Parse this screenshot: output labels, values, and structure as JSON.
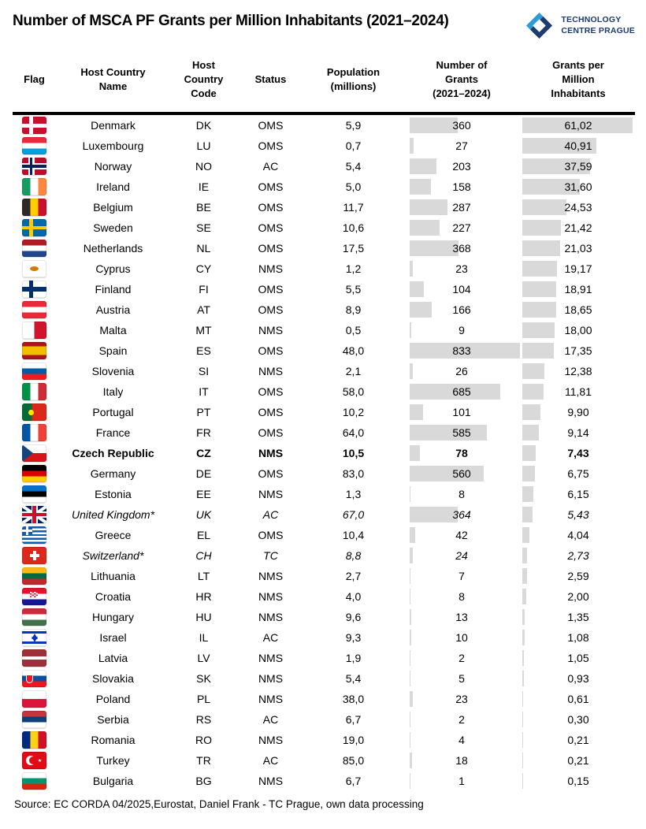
{
  "title": "Number of MSCA PF Grants per Million Inhabitants (2021–2024)",
  "logo": {
    "line1": "TECHNOLOGY",
    "line2": "CENTRE PRAGUE",
    "light_blue": "#2e9bd6",
    "dark_blue": "#1d3b6d"
  },
  "source": "Source: EC CORDA 04/2025,Eurostat, Daniel Frank - TC Prague, own data processing",
  "table": {
    "headers": {
      "flag": "Flag",
      "name": "Host Country\nName",
      "code": "Host\nCountry\nCode",
      "status": "Status",
      "population": "Population\n(millions)",
      "grants": "Number of\nGrants\n(2021–2024)",
      "gpm": "Grants per\nMillion\nInhabitants"
    },
    "bar_color": "#d9d9d9",
    "grants_axis_max": 833,
    "gpm_axis_max": 61.02,
    "rows": [
      {
        "name": "Denmark",
        "code": "DK",
        "status": "OMS",
        "population": "5,9",
        "grants": 360,
        "gpm": 61.02,
        "gpm_display": "61,02",
        "style": "normal",
        "flag": {
          "bg": "#c8102e",
          "o": [
            {
              "t": "nordic",
              "c": "#ffffff",
              "w": 5
            }
          ]
        }
      },
      {
        "name": "Luxembourg",
        "code": "LU",
        "status": "OMS",
        "population": "0,7",
        "grants": 27,
        "gpm": 40.91,
        "gpm_display": "40,91",
        "style": "normal",
        "flag": {
          "s": {
            "d": "h",
            "c": [
              "#ed2939",
              "#ffffff",
              "#00a1de"
            ]
          }
        }
      },
      {
        "name": "Norway",
        "code": "NO",
        "status": "AC",
        "population": "5,4",
        "grants": 203,
        "gpm": 37.59,
        "gpm_display": "37,59",
        "style": "normal",
        "flag": {
          "bg": "#ba0c2f",
          "o": [
            {
              "t": "nordic",
              "c": "#ffffff",
              "w": 8
            },
            {
              "t": "nordic",
              "c": "#00205b",
              "w": 3.5
            }
          ]
        }
      },
      {
        "name": "Ireland",
        "code": "IE",
        "status": "OMS",
        "population": "5,0",
        "grants": 158,
        "gpm": 31.6,
        "gpm_display": "31,60",
        "style": "normal",
        "flag": {
          "s": {
            "d": "v",
            "c": [
              "#169b62",
              "#ffffff",
              "#ff883e"
            ]
          }
        }
      },
      {
        "name": "Belgium",
        "code": "BE",
        "status": "OMS",
        "population": "11,7",
        "grants": 287,
        "gpm": 24.53,
        "gpm_display": "24,53",
        "style": "normal",
        "flag": {
          "s": {
            "d": "v",
            "c": [
              "#2d2926",
              "#ffcd00",
              "#c8102e"
            ]
          }
        }
      },
      {
        "name": "Sweden",
        "code": "SE",
        "status": "OMS",
        "population": "10,6",
        "grants": 227,
        "gpm": 21.42,
        "gpm_display": "21,42",
        "style": "normal",
        "flag": {
          "bg": "#006aa7",
          "o": [
            {
              "t": "nordic",
              "c": "#fecc00",
              "w": 4.5
            }
          ]
        }
      },
      {
        "name": "Netherlands",
        "code": "NL",
        "status": "OMS",
        "population": "17,5",
        "grants": 368,
        "gpm": 21.03,
        "gpm_display": "21,03",
        "style": "normal",
        "flag": {
          "s": {
            "d": "h",
            "c": [
              "#ae1c28",
              "#ffffff",
              "#21468b"
            ]
          }
        }
      },
      {
        "name": "Cyprus",
        "code": "CY",
        "status": "NMS",
        "population": "1,2",
        "grants": 23,
        "gpm": 19.17,
        "gpm_display": "19,17",
        "style": "normal",
        "flag": {
          "bg": "#ffffff",
          "o": [
            {
              "t": "dot",
              "c": "#d57800",
              "x": 10,
              "w": 11,
              "h": 6
            }
          ]
        }
      },
      {
        "name": "Finland",
        "code": "FI",
        "status": "OMS",
        "population": "5,5",
        "grants": 104,
        "gpm": 18.91,
        "gpm_display": "18,91",
        "style": "normal",
        "flag": {
          "bg": "#ffffff",
          "o": [
            {
              "t": "nordic",
              "c": "#002f6c",
              "w": 5.5
            }
          ]
        }
      },
      {
        "name": "Austria",
        "code": "AT",
        "status": "OMS",
        "population": "8,9",
        "grants": 166,
        "gpm": 18.65,
        "gpm_display": "18,65",
        "style": "normal",
        "flag": {
          "s": {
            "d": "h",
            "c": [
              "#ed2939",
              "#ffffff",
              "#ed2939"
            ]
          }
        }
      },
      {
        "name": "Malta",
        "code": "MT",
        "status": "NMS",
        "population": "0,5",
        "grants": 9,
        "gpm": 18.0,
        "gpm_display": "18,00",
        "style": "normal",
        "flag": {
          "s": {
            "d": "v",
            "c": [
              "#ffffff",
              "#cf142b"
            ]
          }
        }
      },
      {
        "name": "Spain",
        "code": "ES",
        "status": "OMS",
        "population": "48,0",
        "grants": 833,
        "gpm": 17.35,
        "gpm_display": "17,35",
        "style": "normal",
        "flag": {
          "s": {
            "d": "h",
            "c": [
              "#aa151b",
              "#f1bf00",
              "#aa151b"
            ],
            "w": [
              1,
              2,
              1
            ]
          }
        }
      },
      {
        "name": "Slovenia",
        "code": "SI",
        "status": "NMS",
        "population": "2,1",
        "grants": 26,
        "gpm": 12.38,
        "gpm_display": "12,38",
        "style": "normal",
        "flag": {
          "s": {
            "d": "h",
            "c": [
              "#ffffff",
              "#005da4",
              "#ed1c24"
            ]
          }
        }
      },
      {
        "name": "Italy",
        "code": "IT",
        "status": "OMS",
        "population": "58,0",
        "grants": 685,
        "gpm": 11.81,
        "gpm_display": "11,81",
        "style": "normal",
        "flag": {
          "s": {
            "d": "v",
            "c": [
              "#009246",
              "#ffffff",
              "#ce2b37"
            ]
          }
        }
      },
      {
        "name": "Portugal",
        "code": "PT",
        "status": "OMS",
        "population": "10,2",
        "grants": 101,
        "gpm": 9.9,
        "gpm_display": "9,90",
        "style": "normal",
        "flag": {
          "s": {
            "d": "v",
            "c": [
              "#046a38",
              "#da291c"
            ],
            "w": [
              2,
              3
            ]
          },
          "o": [
            {
              "t": "dot",
              "c": "#ffe900",
              "x": 8,
              "w": 7,
              "h": 7
            }
          ]
        }
      },
      {
        "name": "France",
        "code": "FR",
        "status": "OMS",
        "population": "64,0",
        "grants": 585,
        "gpm": 9.14,
        "gpm_display": "9,14",
        "style": "normal",
        "flag": {
          "s": {
            "d": "v",
            "c": [
              "#0055a4",
              "#ffffff",
              "#ef4135"
            ]
          }
        }
      },
      {
        "name": "Czech Republic",
        "code": "CZ",
        "status": "NMS",
        "population": "10,5",
        "grants": 78,
        "gpm": 7.43,
        "gpm_display": "7,43",
        "style": "bold",
        "flag": {
          "s": {
            "d": "h",
            "c": [
              "#ffffff",
              "#d7141a"
            ]
          },
          "o": [
            {
              "t": "tri",
              "c": "#11457e"
            }
          ]
        }
      },
      {
        "name": "Germany",
        "code": "DE",
        "status": "OMS",
        "population": "83,0",
        "grants": 560,
        "gpm": 6.75,
        "gpm_display": "6,75",
        "style": "normal",
        "flag": {
          "s": {
            "d": "h",
            "c": [
              "#000000",
              "#dd0000",
              "#ffce00"
            ]
          }
        }
      },
      {
        "name": "Estonia",
        "code": "EE",
        "status": "NMS",
        "population": "1,3",
        "grants": 8,
        "gpm": 6.15,
        "gpm_display": "6,15",
        "style": "normal",
        "flag": {
          "s": {
            "d": "h",
            "c": [
              "#0072ce",
              "#000000",
              "#ffffff"
            ]
          }
        }
      },
      {
        "name": "United Kingdom*",
        "code": "UK",
        "status": "AC",
        "population": "67,0",
        "grants": 364,
        "gpm": 5.43,
        "gpm_display": "5,43",
        "style": "italic",
        "flag": {
          "bg": "#012169",
          "o": [
            {
              "t": "saltire"
            },
            {
              "t": "ujcross"
            }
          ]
        }
      },
      {
        "name": "Greece",
        "code": "EL",
        "status": "OMS",
        "population": "10,4",
        "grants": 42,
        "gpm": 4.04,
        "gpm_display": "4,04",
        "style": "normal",
        "flag": {
          "s": {
            "d": "h",
            "c": [
              "#0d5eaf",
              "#ffffff",
              "#0d5eaf",
              "#ffffff",
              "#0d5eaf",
              "#ffffff",
              "#0d5eaf",
              "#ffffff",
              "#0d5eaf"
            ]
          },
          "o": [
            {
              "t": "canton",
              "c": "#0d5eaf"
            }
          ]
        }
      },
      {
        "name": "Switzerland*",
        "code": "CH",
        "status": "TC",
        "population": "8,8",
        "grants": 24,
        "gpm": 2.73,
        "gpm_display": "2,73",
        "style": "italic",
        "flag": {
          "bg": "#da291c",
          "o": [
            {
              "t": "plus",
              "c": "#ffffff"
            }
          ]
        }
      },
      {
        "name": "Lithuania",
        "code": "LT",
        "status": "NMS",
        "population": "2,7",
        "grants": 7,
        "gpm": 2.59,
        "gpm_display": "2,59",
        "style": "normal",
        "flag": {
          "s": {
            "d": "h",
            "c": [
              "#fdb913",
              "#006a44",
              "#c1272d"
            ]
          }
        }
      },
      {
        "name": "Croatia",
        "code": "HR",
        "status": "NMS",
        "population": "4,0",
        "grants": 8,
        "gpm": 2.0,
        "gpm_display": "2,00",
        "style": "normal",
        "flag": {
          "s": {
            "d": "h",
            "c": [
              "#e8112d",
              "#ffffff",
              "#171796"
            ]
          },
          "o": [
            {
              "t": "check"
            }
          ]
        }
      },
      {
        "name": "Hungary",
        "code": "HU",
        "status": "NMS",
        "population": "9,6",
        "grants": 13,
        "gpm": 1.35,
        "gpm_display": "1,35",
        "style": "normal",
        "flag": {
          "s": {
            "d": "h",
            "c": [
              "#cd2a3e",
              "#ffffff",
              "#436f4d"
            ]
          }
        }
      },
      {
        "name": "Israel",
        "code": "IL",
        "status": "AC",
        "population": "9,3",
        "grants": 10,
        "gpm": 1.08,
        "gpm_display": "1,08",
        "style": "normal",
        "flag": {
          "bg": "#ffffff",
          "o": [
            {
              "t": "bands",
              "c": "#0038b8"
            },
            {
              "t": "star6",
              "c": "#0038b8"
            }
          ]
        }
      },
      {
        "name": "Latvia",
        "code": "LV",
        "status": "NMS",
        "population": "1,9",
        "grants": 2,
        "gpm": 1.05,
        "gpm_display": "1,05",
        "style": "normal",
        "flag": {
          "s": {
            "d": "h",
            "c": [
              "#9e3039",
              "#ffffff",
              "#9e3039"
            ],
            "w": [
              2,
              1,
              2
            ]
          }
        }
      },
      {
        "name": "Slovakia",
        "code": "SK",
        "status": "NMS",
        "population": "5,4",
        "grants": 5,
        "gpm": 0.93,
        "gpm_display": "0,93",
        "style": "normal",
        "flag": {
          "s": {
            "d": "h",
            "c": [
              "#ffffff",
              "#0b4ea2",
              "#ee1620"
            ]
          },
          "o": [
            {
              "t": "shield"
            }
          ]
        }
      },
      {
        "name": "Poland",
        "code": "PL",
        "status": "NMS",
        "population": "38,0",
        "grants": 23,
        "gpm": 0.61,
        "gpm_display": "0,61",
        "style": "normal",
        "flag": {
          "s": {
            "d": "h",
            "c": [
              "#ffffff",
              "#dc143c"
            ]
          }
        }
      },
      {
        "name": "Serbia",
        "code": "RS",
        "status": "AC",
        "population": "6,7",
        "grants": 2,
        "gpm": 0.3,
        "gpm_display": "0,30",
        "style": "normal",
        "flag": {
          "s": {
            "d": "h",
            "c": [
              "#c6363c",
              "#0c4076",
              "#ffffff"
            ]
          }
        }
      },
      {
        "name": "Romania",
        "code": "RO",
        "status": "NMS",
        "population": "19,0",
        "grants": 4,
        "gpm": 0.21,
        "gpm_display": "0,21",
        "style": "normal",
        "flag": {
          "s": {
            "d": "v",
            "c": [
              "#002b7f",
              "#fcd116",
              "#ce1126"
            ]
          }
        }
      },
      {
        "name": "Turkey",
        "code": "TR",
        "status": "AC",
        "population": "85,0",
        "grants": 18,
        "gpm": 0.21,
        "gpm_display": "0,21",
        "style": "normal",
        "flag": {
          "bg": "#e30a17",
          "o": [
            {
              "t": "crescent"
            }
          ]
        }
      },
      {
        "name": "Bulgaria",
        "code": "BG",
        "status": "NMS",
        "population": "6,7",
        "grants": 1,
        "gpm": 0.15,
        "gpm_display": "0,15",
        "style": "normal",
        "flag": {
          "s": {
            "d": "h",
            "c": [
              "#ffffff",
              "#00966e",
              "#d62612"
            ]
          }
        }
      }
    ]
  },
  "chart_data": {
    "type": "table",
    "title": "Number of MSCA PF Grants per Million Inhabitants (2021–2024)",
    "columns": [
      "Flag",
      "Host Country Name",
      "Host Country Code",
      "Status",
      "Population (millions)",
      "Number of Grants (2021–2024)",
      "Grants per Million Inhabitants"
    ],
    "embedded_bars": {
      "grants_bar_max": 833,
      "grants_per_million_bar_max": 61.02,
      "bar_color": "#d9d9d9"
    },
    "rows": [
      [
        "Denmark",
        "DK",
        "OMS",
        5.9,
        360,
        61.02
      ],
      [
        "Luxembourg",
        "LU",
        "OMS",
        0.7,
        27,
        40.91
      ],
      [
        "Norway",
        "NO",
        "AC",
        5.4,
        203,
        37.59
      ],
      [
        "Ireland",
        "IE",
        "OMS",
        5.0,
        158,
        31.6
      ],
      [
        "Belgium",
        "BE",
        "OMS",
        11.7,
        287,
        24.53
      ],
      [
        "Sweden",
        "SE",
        "OMS",
        10.6,
        227,
        21.42
      ],
      [
        "Netherlands",
        "NL",
        "OMS",
        17.5,
        368,
        21.03
      ],
      [
        "Cyprus",
        "CY",
        "NMS",
        1.2,
        23,
        19.17
      ],
      [
        "Finland",
        "FI",
        "OMS",
        5.5,
        104,
        18.91
      ],
      [
        "Austria",
        "AT",
        "OMS",
        8.9,
        166,
        18.65
      ],
      [
        "Malta",
        "MT",
        "NMS",
        0.5,
        9,
        18.0
      ],
      [
        "Spain",
        "ES",
        "OMS",
        48.0,
        833,
        17.35
      ],
      [
        "Slovenia",
        "SI",
        "NMS",
        2.1,
        26,
        12.38
      ],
      [
        "Italy",
        "IT",
        "OMS",
        58.0,
        685,
        11.81
      ],
      [
        "Portugal",
        "PT",
        "OMS",
        10.2,
        101,
        9.9
      ],
      [
        "France",
        "FR",
        "OMS",
        64.0,
        585,
        9.14
      ],
      [
        "Czech Republic",
        "CZ",
        "NMS",
        10.5,
        78,
        7.43
      ],
      [
        "Germany",
        "DE",
        "OMS",
        83.0,
        560,
        6.75
      ],
      [
        "Estonia",
        "EE",
        "NMS",
        1.3,
        8,
        6.15
      ],
      [
        "United Kingdom*",
        "UK",
        "AC",
        67.0,
        364,
        5.43
      ],
      [
        "Greece",
        "EL",
        "OMS",
        10.4,
        42,
        4.04
      ],
      [
        "Switzerland*",
        "CH",
        "TC",
        8.8,
        24,
        2.73
      ],
      [
        "Lithuania",
        "LT",
        "NMS",
        2.7,
        7,
        2.59
      ],
      [
        "Croatia",
        "HR",
        "NMS",
        4.0,
        8,
        2.0
      ],
      [
        "Hungary",
        "HU",
        "NMS",
        9.6,
        13,
        1.35
      ],
      [
        "Israel",
        "IL",
        "AC",
        9.3,
        10,
        1.08
      ],
      [
        "Latvia",
        "LV",
        "NMS",
        1.9,
        2,
        1.05
      ],
      [
        "Slovakia",
        "SK",
        "NMS",
        5.4,
        5,
        0.93
      ],
      [
        "Poland",
        "PL",
        "NMS",
        38.0,
        23,
        0.61
      ],
      [
        "Serbia",
        "RS",
        "AC",
        6.7,
        2,
        0.3
      ],
      [
        "Romania",
        "RO",
        "NMS",
        19.0,
        4,
        0.21
      ],
      [
        "Turkey",
        "TR",
        "AC",
        85.0,
        18,
        0.21
      ],
      [
        "Bulgaria",
        "BG",
        "NMS",
        6.7,
        1,
        0.15
      ]
    ]
  }
}
